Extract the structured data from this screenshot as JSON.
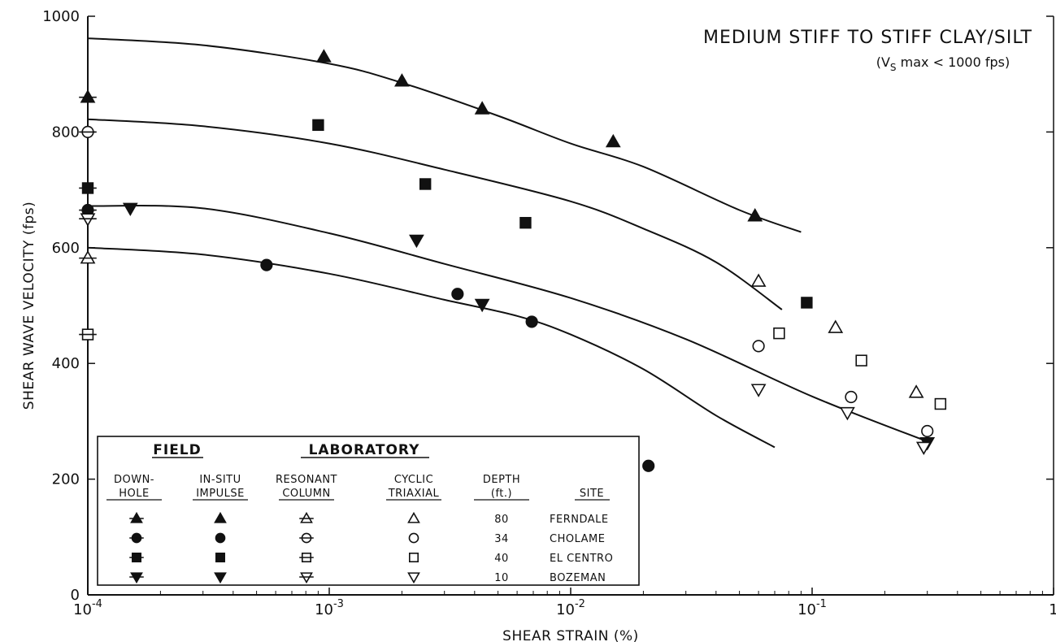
{
  "chart_data": {
    "type": "scatter",
    "title": "MEDIUM STIFF TO STIFF CLAY/SILT",
    "subtitle_parts": [
      "(V",
      "S",
      "max < 1000 fps)"
    ],
    "xlabel": "SHEAR STRAIN (%)",
    "ylabel": "SHEAR WAVE VELOCITY (fps)",
    "xscale": "log",
    "xlim": [
      0.0001,
      1
    ],
    "ylim": [
      0,
      1000
    ],
    "x_ticks": [
      {
        "value": 0.0001,
        "base": "10",
        "exp": "-4"
      },
      {
        "value": 0.001,
        "base": "10",
        "exp": "-3"
      },
      {
        "value": 0.01,
        "base": "10",
        "exp": "-2"
      },
      {
        "value": 0.1,
        "base": "10",
        "exp": "-1"
      },
      {
        "value": 1,
        "base": "1",
        "exp": ""
      }
    ],
    "y_ticks": [
      0,
      200,
      400,
      600,
      800,
      1000
    ],
    "curves": [
      {
        "site": "FERNDALE",
        "x": [
          0.0001,
          0.0003,
          0.001,
          0.002,
          0.005,
          0.01,
          0.02,
          0.05,
          0.09
        ],
        "y": [
          962,
          950,
          918,
          885,
          828,
          780,
          740,
          665,
          627
        ]
      },
      {
        "site": "EL CENTRO",
        "x": [
          0.0001,
          0.0003,
          0.001,
          0.003,
          0.01,
          0.02,
          0.04,
          0.075
        ],
        "y": [
          822,
          810,
          780,
          735,
          680,
          633,
          575,
          493
        ]
      },
      {
        "site": "BOZEMAN",
        "x": [
          0.0001,
          0.0003,
          0.001,
          0.003,
          0.01,
          0.03,
          0.1,
          0.3
        ],
        "y": [
          672,
          668,
          625,
          572,
          513,
          442,
          343,
          265
        ]
      },
      {
        "site": "CHOLAME",
        "x": [
          0.0001,
          0.0003,
          0.001,
          0.003,
          0.006,
          0.01,
          0.02,
          0.04,
          0.07
        ],
        "y": [
          600,
          588,
          555,
          510,
          482,
          450,
          390,
          310,
          255
        ]
      }
    ],
    "series": [
      {
        "name": "FERNDALE",
        "method": "DOWN-HOLE",
        "marker": "triangle-up-crossed",
        "filled": true,
        "points": [
          [
            0.0001,
            860
          ]
        ]
      },
      {
        "name": "FERNDALE",
        "method": "IN-SITU IMPULSE",
        "marker": "triangle-up",
        "filled": true,
        "points": [
          [
            0.00095,
            930
          ],
          [
            0.002,
            888
          ],
          [
            0.0043,
            840
          ],
          [
            0.015,
            783
          ],
          [
            0.058,
            655
          ]
        ]
      },
      {
        "name": "FERNDALE",
        "method": "RESONANT COLUMN",
        "marker": "triangle-up-crossed",
        "filled": false,
        "points": [
          [
            0.0001,
            582
          ]
        ]
      },
      {
        "name": "FERNDALE",
        "method": "CYCLIC TRIAXIAL",
        "marker": "triangle-up",
        "filled": false,
        "points": [
          [
            0.06,
            542
          ],
          [
            0.125,
            462
          ],
          [
            0.27,
            350
          ]
        ]
      },
      {
        "name": "CHOLAME",
        "method": "DOWN-HOLE",
        "marker": "circle-crossed",
        "filled": true,
        "points": [
          [
            0.0001,
            665
          ]
        ]
      },
      {
        "name": "CHOLAME",
        "method": "IN-SITU IMPULSE",
        "marker": "circle",
        "filled": true,
        "points": [
          [
            0.00055,
            570
          ],
          [
            0.0034,
            520
          ],
          [
            0.0069,
            472
          ],
          [
            0.021,
            223
          ]
        ]
      },
      {
        "name": "CHOLAME",
        "method": "RESONANT COLUMN",
        "marker": "circle-crossed",
        "filled": false,
        "points": [
          [
            0.0001,
            800
          ]
        ]
      },
      {
        "name": "CHOLAME",
        "method": "CYCLIC TRIAXIAL",
        "marker": "circle",
        "filled": false,
        "points": [
          [
            0.06,
            430
          ],
          [
            0.145,
            342
          ],
          [
            0.3,
            283
          ]
        ]
      },
      {
        "name": "EL CENTRO",
        "method": "DOWN-HOLE",
        "marker": "square-crossed",
        "filled": true,
        "points": [
          [
            0.0001,
            703
          ]
        ]
      },
      {
        "name": "EL CENTRO",
        "method": "IN-SITU IMPULSE",
        "marker": "square",
        "filled": true,
        "points": [
          [
            0.0009,
            812
          ],
          [
            0.0025,
            710
          ],
          [
            0.0065,
            643
          ],
          [
            0.095,
            505
          ]
        ]
      },
      {
        "name": "EL CENTRO",
        "method": "RESONANT COLUMN",
        "marker": "square-crossed",
        "filled": false,
        "points": [
          [
            0.0001,
            450
          ]
        ]
      },
      {
        "name": "EL CENTRO",
        "method": "CYCLIC TRIAXIAL",
        "marker": "square",
        "filled": false,
        "points": [
          [
            0.073,
            452
          ],
          [
            0.16,
            405
          ],
          [
            0.34,
            330
          ]
        ]
      },
      {
        "name": "BOZEMAN",
        "method": "DOWN-HOLE",
        "marker": "triangle-down-crossed",
        "filled": true,
        "points": []
      },
      {
        "name": "BOZEMAN",
        "method": "IN-SITU IMPULSE",
        "marker": "triangle-down",
        "filled": true,
        "points": [
          [
            0.00015,
            668
          ],
          [
            0.0023,
            613
          ],
          [
            0.0043,
            502
          ],
          [
            0.3,
            263
          ]
        ]
      },
      {
        "name": "BOZEMAN",
        "method": "RESONANT COLUMN",
        "marker": "triangle-down-crossed",
        "filled": false,
        "points": [
          [
            0.0001,
            650
          ]
        ]
      },
      {
        "name": "BOZEMAN",
        "method": "CYCLIC TRIAXIAL",
        "marker": "triangle-down",
        "filled": false,
        "points": [
          [
            0.06,
            355
          ],
          [
            0.14,
            315
          ],
          [
            0.29,
            255
          ]
        ]
      }
    ],
    "legend": {
      "placement": "bottom-left",
      "group_field": "FIELD",
      "group_lab": "LABORATORY",
      "col_downhole": [
        "DOWN-",
        "HOLE"
      ],
      "col_insitu": [
        "IN-SITU",
        "IMPULSE"
      ],
      "col_resonant": [
        "RESONANT",
        "COLUMN"
      ],
      "col_cyclic": [
        "CYCLIC",
        "TRIAXIAL"
      ],
      "col_depth": [
        "DEPTH",
        "(ft.)"
      ],
      "col_site": [
        "SITE"
      ],
      "rows": [
        {
          "depth": "80",
          "site": "FERNDALE",
          "shape": "triangle-up"
        },
        {
          "depth": "34",
          "site": "CHOLAME",
          "shape": "circle"
        },
        {
          "depth": "40",
          "site": "EL CENTRO",
          "shape": "square"
        },
        {
          "depth": "10",
          "site": "BOZEMAN",
          "shape": "triangle-down"
        }
      ]
    },
    "grid": false
  }
}
